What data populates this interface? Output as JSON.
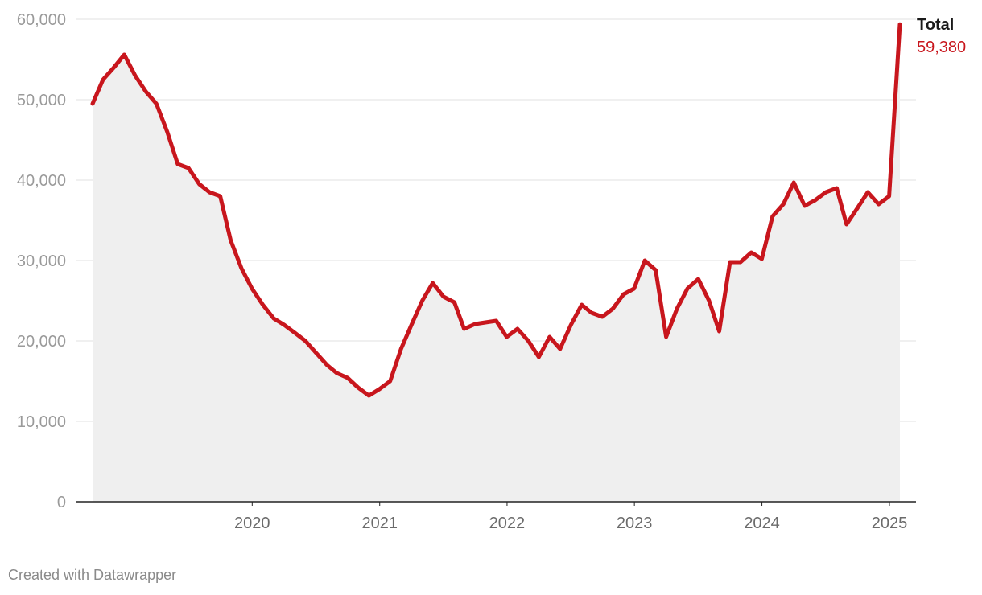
{
  "chart_data": {
    "type": "area",
    "title": "",
    "xlabel": "",
    "ylabel": "",
    "x_ticks": [
      "2020",
      "2021",
      "2022",
      "2023",
      "2024",
      "2025"
    ],
    "y_ticks": [
      "0",
      "10,000",
      "20,000",
      "30,000",
      "40,000",
      "50,000",
      "60,000"
    ],
    "ylim": [
      0,
      60000
    ],
    "xlim": [
      "2019-04-01",
      "2025-08-01"
    ],
    "grid": true,
    "series": [
      {
        "name": "Total",
        "color": "#c8161d",
        "fill": "#efefef",
        "end_label": "Total",
        "end_value": "59,380",
        "points": [
          [
            "2019-04-01",
            49500
          ],
          [
            "2019-05-01",
            52500
          ],
          [
            "2019-06-01",
            54000
          ],
          [
            "2019-07-01",
            55600
          ],
          [
            "2019-08-01",
            53000
          ],
          [
            "2019-09-01",
            51000
          ],
          [
            "2019-10-01",
            49500
          ],
          [
            "2019-11-01",
            46000
          ],
          [
            "2019-12-01",
            42000
          ],
          [
            "2020-01-01",
            41500
          ],
          [
            "2020-02-01",
            39500
          ],
          [
            "2020-03-01",
            38500
          ],
          [
            "2020-04-01",
            38000
          ],
          [
            "2020-05-01",
            32500
          ],
          [
            "2020-06-01",
            29000
          ],
          [
            "2020-07-01",
            26500
          ],
          [
            "2020-08-01",
            24500
          ],
          [
            "2020-09-01",
            22800
          ],
          [
            "2020-10-01",
            22000
          ],
          [
            "2020-11-01",
            21000
          ],
          [
            "2020-12-01",
            20000
          ],
          [
            "2021-01-01",
            18500
          ],
          [
            "2021-02-01",
            17000
          ],
          [
            "2021-03-01",
            16000
          ],
          [
            "2021-04-01",
            15400
          ],
          [
            "2021-05-01",
            14200
          ],
          [
            "2021-06-01",
            13200
          ],
          [
            "2021-07-01",
            14000
          ],
          [
            "2021-08-01",
            15000
          ],
          [
            "2021-09-01",
            19000
          ],
          [
            "2021-10-01",
            22000
          ],
          [
            "2021-11-01",
            25000
          ],
          [
            "2021-12-01",
            27200
          ],
          [
            "2022-01-01",
            25500
          ],
          [
            "2022-02-01",
            24800
          ],
          [
            "2022-03-01",
            21500
          ],
          [
            "2022-04-01",
            22100
          ],
          [
            "2022-05-01",
            22300
          ],
          [
            "2022-06-01",
            22500
          ],
          [
            "2022-07-01",
            20500
          ],
          [
            "2022-08-01",
            21500
          ],
          [
            "2022-09-01",
            20000
          ],
          [
            "2022-10-01",
            18000
          ],
          [
            "2022-11-01",
            20500
          ],
          [
            "2022-12-01",
            19000
          ],
          [
            "2023-01-01",
            22000
          ],
          [
            "2023-02-01",
            24500
          ],
          [
            "2023-03-01",
            23500
          ],
          [
            "2023-04-01",
            23000
          ],
          [
            "2023-05-01",
            24000
          ],
          [
            "2023-06-01",
            25800
          ],
          [
            "2023-07-01",
            26500
          ],
          [
            "2023-08-01",
            30000
          ],
          [
            "2023-09-01",
            28800
          ],
          [
            "2023-10-01",
            20500
          ],
          [
            "2023-11-01",
            24000
          ],
          [
            "2023-12-01",
            26500
          ],
          [
            "2024-01-01",
            27700
          ],
          [
            "2024-02-01",
            25000
          ],
          [
            "2024-03-01",
            21200
          ],
          [
            "2024-04-01",
            29800
          ],
          [
            "2024-05-01",
            29800
          ],
          [
            "2024-06-01",
            31000
          ],
          [
            "2024-07-01",
            30200
          ],
          [
            "2024-08-01",
            35500
          ],
          [
            "2024-09-01",
            37000
          ],
          [
            "2024-10-01",
            39700
          ],
          [
            "2024-11-01",
            36800
          ],
          [
            "2024-12-01",
            37500
          ],
          [
            "2025-01-01",
            38500
          ],
          [
            "2025-02-01",
            39000
          ],
          [
            "2025-03-01",
            34500
          ],
          [
            "2025-04-01",
            36500
          ],
          [
            "2025-05-01",
            38500
          ],
          [
            "2025-06-01",
            37000
          ],
          [
            "2025-07-01",
            38000
          ],
          [
            "2025-08-01",
            59380
          ]
        ]
      }
    ]
  },
  "footer": {
    "credit": "Created with Datawrapper"
  }
}
